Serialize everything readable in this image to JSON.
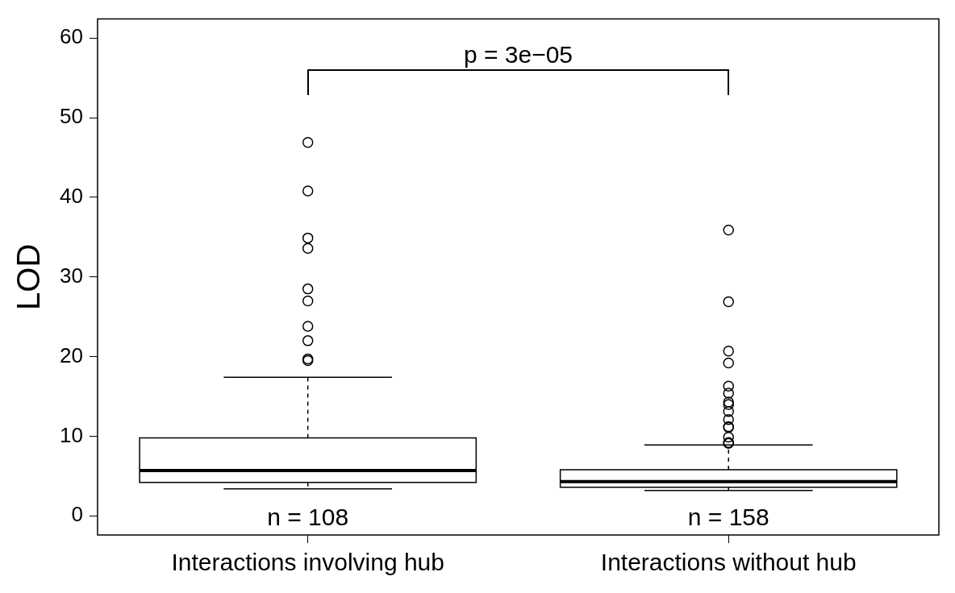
{
  "chart_data": {
    "type": "box",
    "ylabel": "LOD",
    "categories": [
      "Interactions involving hub",
      "Interactions without hub"
    ],
    "boxes": [
      {
        "low": 3.4,
        "q1": 4.2,
        "median": 5.7,
        "q3": 9.8,
        "high": 17.4,
        "outliers": [
          46.9,
          40.8,
          34.9,
          33.6,
          28.5,
          27.0,
          23.8,
          22.0,
          19.7,
          19.5
        ]
      },
      {
        "low": 3.2,
        "q1": 3.6,
        "median": 4.3,
        "q3": 5.8,
        "high": 8.9,
        "outliers": [
          35.9,
          26.9,
          20.7,
          19.2,
          16.3,
          15.4,
          14.3,
          14.0,
          13.1,
          12.1,
          11.2,
          11.1,
          9.9,
          9.2,
          9.1
        ]
      }
    ],
    "ylim": [
      -2.4,
      62.4
    ],
    "yticks": [
      0,
      10,
      20,
      30,
      40,
      50,
      60
    ],
    "grid": false,
    "legend": false,
    "marker": "circle",
    "annotations": [
      "p = 3e−05",
      "n = 108",
      "n = 158"
    ]
  }
}
